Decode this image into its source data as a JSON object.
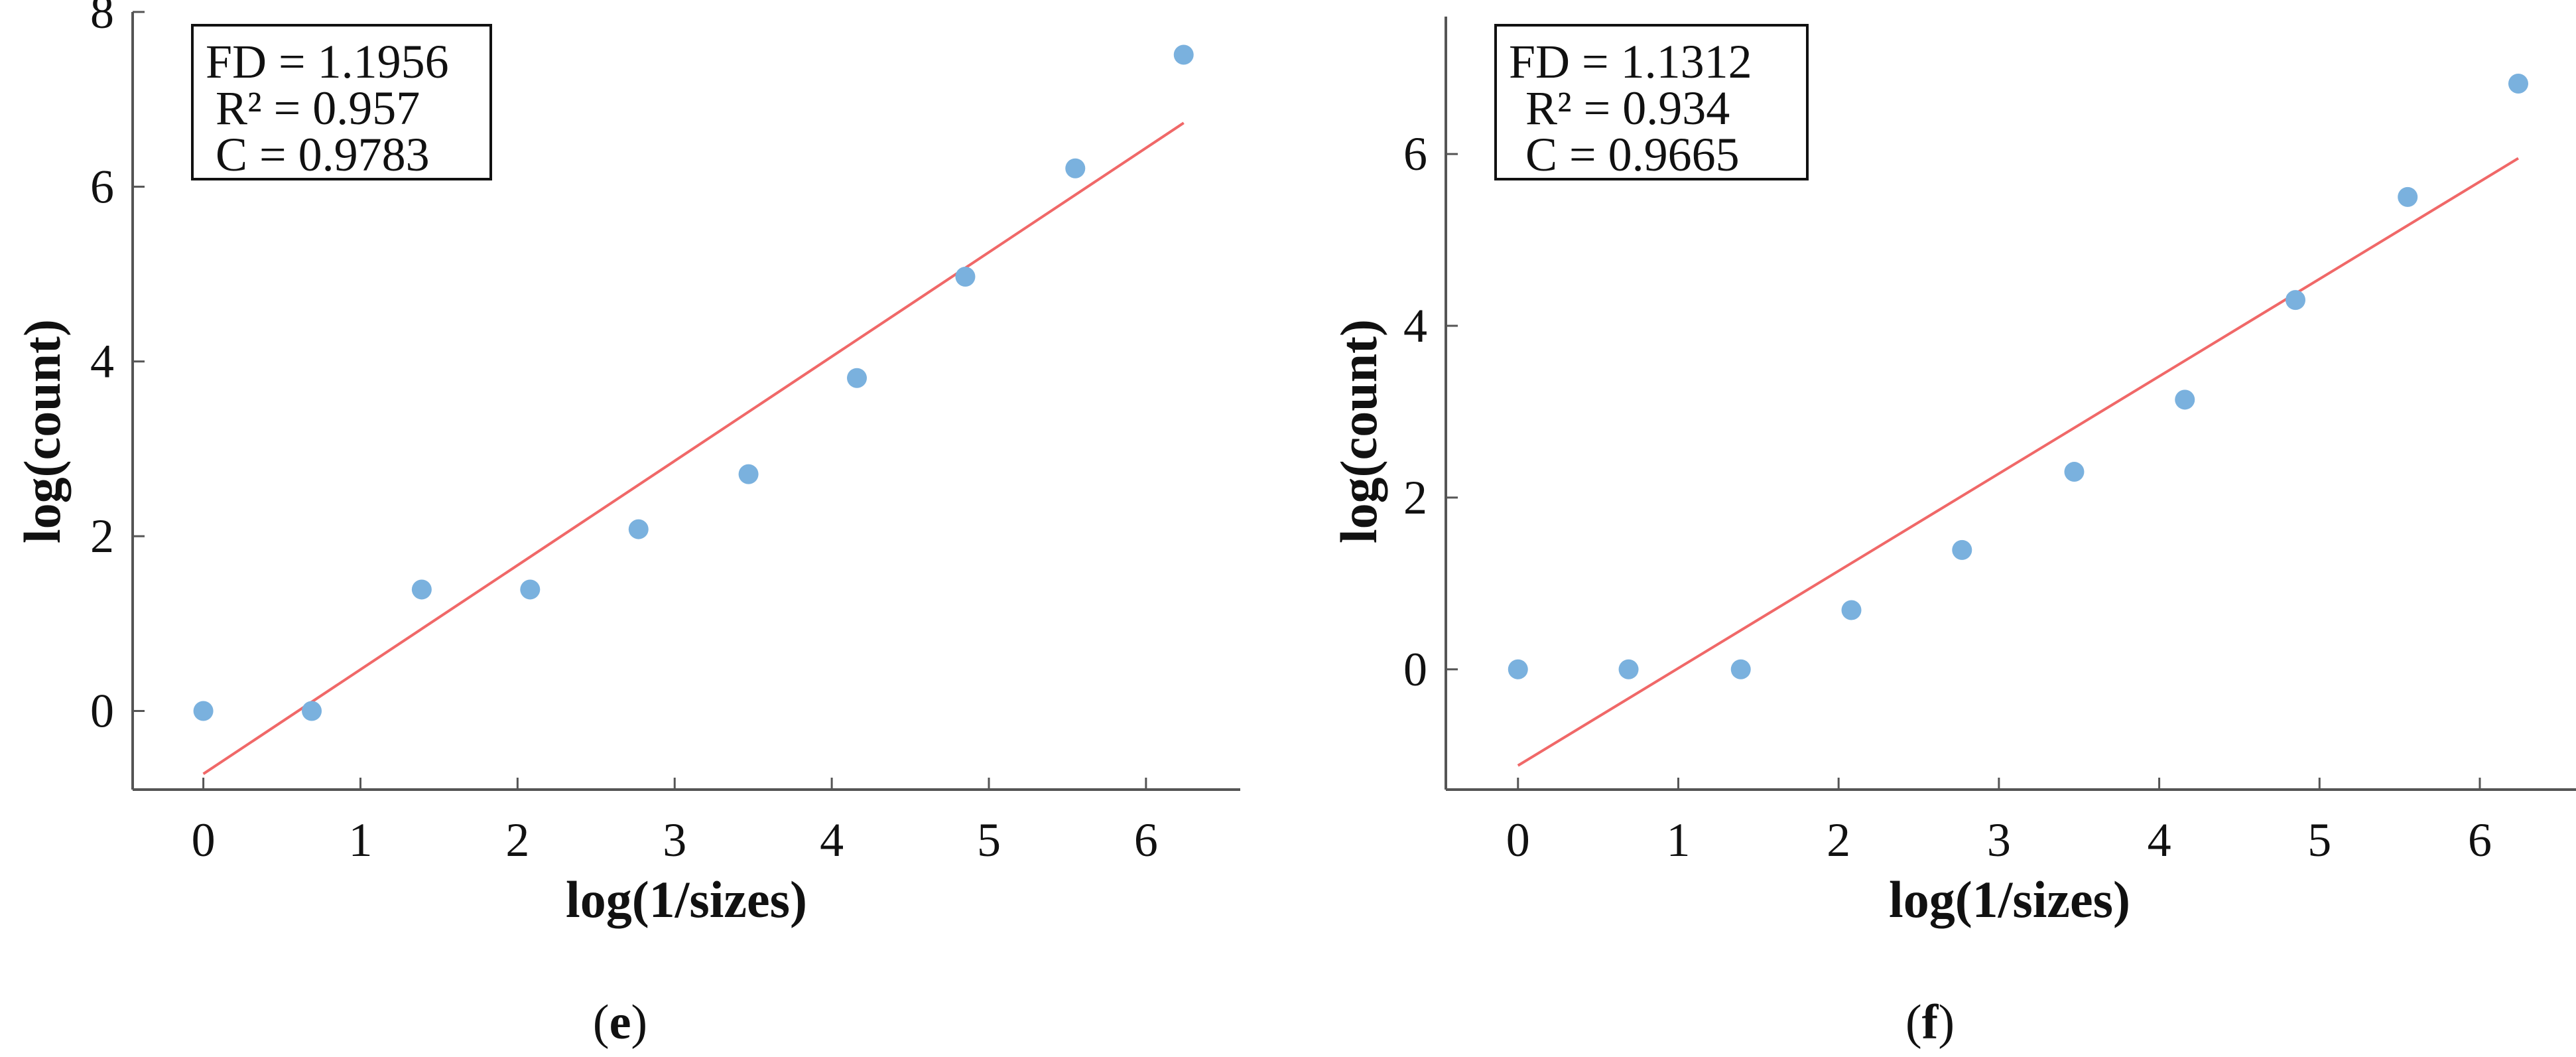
{
  "chart_data": [
    {
      "type": "scatter",
      "panel_label": {
        "open": "(",
        "letter": "e",
        "close": ")"
      },
      "xlabel": "log(1/sizes)",
      "ylabel": "log(count)",
      "xlim": [
        -0.45,
        6.6
      ],
      "ylim": [
        -0.9,
        8.0
      ],
      "xticks": [
        0,
        1,
        2,
        3,
        4,
        5,
        6
      ],
      "yticks": [
        0,
        2,
        4,
        6,
        8
      ],
      "stats": [
        "FD = 1.1956",
        "R² = 0.957",
        "C = 0.9783"
      ],
      "grid": false,
      "point_color": "#7ab1de",
      "line_color": "#f06868",
      "points": {
        "x": [
          0,
          0.69,
          1.39,
          2.08,
          2.77,
          3.47,
          4.16,
          4.85,
          5.55,
          6.24
        ],
        "y": [
          0,
          0,
          1.39,
          1.39,
          2.08,
          2.71,
          3.81,
          4.97,
          6.21,
          7.51
        ]
      },
      "fit_line": {
        "x": [
          0,
          6.24
        ],
        "y": [
          -0.72,
          6.73
        ]
      }
    },
    {
      "type": "scatter",
      "panel_label": {
        "open": "(",
        "letter": "f",
        "close": ")"
      },
      "xlabel": "log(1/sizes)",
      "ylabel": "log(count)",
      "xlim": [
        -0.45,
        6.6
      ],
      "ylim": [
        -1.4,
        7.6
      ],
      "xticks": [
        0,
        1,
        2,
        3,
        4,
        5,
        6
      ],
      "yticks": [
        0,
        2,
        4,
        6
      ],
      "stats": [
        "FD = 1.1312",
        "R² = 0.934",
        "C = 0.9665"
      ],
      "grid": false,
      "point_color": "#7ab1de",
      "line_color": "#f06868",
      "points": {
        "x": [
          0,
          0.69,
          1.39,
          2.08,
          2.77,
          3.47,
          4.16,
          4.85,
          5.55,
          6.24
        ],
        "y": [
          0,
          0,
          0,
          0.69,
          1.39,
          2.3,
          3.14,
          4.3,
          5.5,
          6.82
        ]
      },
      "fit_line": {
        "x": [
          0,
          6.24
        ],
        "y": [
          -1.12,
          5.95
        ]
      }
    }
  ]
}
